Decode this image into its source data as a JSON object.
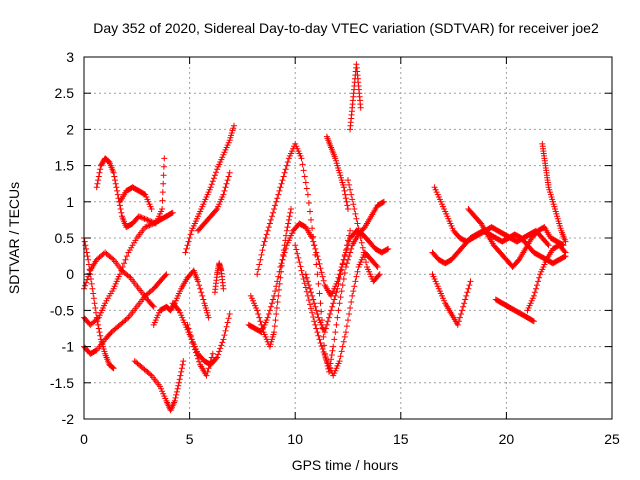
{
  "chart_data": {
    "type": "scatter",
    "title": "Day 352 of 2020, Sidereal Day-to-day VTEC variation (SDTVAR) for receiver joe2",
    "xlabel": "GPS time / hours",
    "ylabel": "SDTVAR / TECUs",
    "xlim": [
      0,
      25
    ],
    "ylim": [
      -2,
      3
    ],
    "xticks": [
      "0",
      "5",
      "10",
      "15",
      "20",
      "25"
    ],
    "yticks": [
      "-2",
      "-1.5",
      "-1",
      "-0.5",
      "0",
      "0.5",
      "1",
      "1.5",
      "2",
      "2.5",
      "3"
    ],
    "grid": true,
    "marker": "plus",
    "color": "#ff0000",
    "series": [
      {
        "name": "s1",
        "x": [
          0.0,
          0.3,
          0.6,
          1.0,
          1.4,
          1.8,
          2.2,
          2.6,
          3.0,
          3.3
        ],
        "y": [
          -0.2,
          0.05,
          0.2,
          0.3,
          0.2,
          0.05,
          -0.05,
          -0.2,
          -0.35,
          -0.45
        ]
      },
      {
        "name": "s2",
        "x": [
          0.0,
          0.3,
          0.7,
          1.0,
          1.4,
          1.7,
          2.1,
          2.5,
          2.9,
          3.3,
          3.6,
          3.9,
          4.2
        ],
        "y": [
          -0.6,
          -0.7,
          -0.6,
          -0.4,
          -0.2,
          0.0,
          0.3,
          0.5,
          0.65,
          0.7,
          0.75,
          0.8,
          0.85
        ]
      },
      {
        "name": "s3",
        "x": [
          0.0,
          0.3,
          0.6,
          1.0,
          1.3,
          1.7,
          2.1,
          2.5,
          2.9,
          3.3,
          3.6,
          3.9
        ],
        "y": [
          -1.0,
          -1.1,
          -1.05,
          -0.9,
          -0.8,
          -0.7,
          -0.6,
          -0.45,
          -0.3,
          -0.2,
          -0.1,
          0.0
        ]
      },
      {
        "name": "s4",
        "x": [
          0.0,
          0.2,
          0.4,
          0.6,
          0.8,
          1.0,
          1.2,
          1.4
        ],
        "y": [
          0.5,
          0.2,
          -0.2,
          -0.6,
          -0.9,
          -1.1,
          -1.25,
          -1.3
        ]
      },
      {
        "name": "s5",
        "x": [
          0.6,
          0.8,
          1.0,
          1.2,
          1.4,
          1.6,
          1.8,
          2.0,
          2.3,
          2.6,
          3.0,
          3.4,
          3.7,
          3.8
        ],
        "y": [
          1.2,
          1.5,
          1.6,
          1.55,
          1.4,
          1.1,
          0.8,
          0.65,
          0.7,
          0.8,
          0.75,
          0.7,
          0.9,
          1.6
        ]
      },
      {
        "name": "s6",
        "x": [
          1.7,
          2.0,
          2.3,
          2.6,
          2.9,
          3.2
        ],
        "y": [
          1.0,
          1.15,
          1.2,
          1.15,
          1.1,
          0.9
        ]
      },
      {
        "name": "s7",
        "x": [
          2.4,
          2.8,
          3.2,
          3.6,
          3.9,
          4.1,
          4.3,
          4.5,
          4.7
        ],
        "y": [
          -1.2,
          -1.3,
          -1.4,
          -1.55,
          -1.75,
          -1.88,
          -1.75,
          -1.5,
          -1.2
        ]
      },
      {
        "name": "s8",
        "x": [
          3.3,
          3.6,
          3.9,
          4.1,
          4.3,
          4.6,
          4.9,
          5.2,
          5.4,
          5.7,
          5.9
        ],
        "y": [
          -0.7,
          -0.5,
          -0.45,
          -0.5,
          -0.4,
          -0.2,
          -0.05,
          0.05,
          -0.1,
          -0.4,
          -0.6
        ]
      },
      {
        "name": "s9",
        "x": [
          4.2,
          4.5,
          4.8,
          5.1,
          5.4,
          5.7,
          6.0,
          6.3,
          6.6,
          6.9
        ],
        "y": [
          -0.4,
          -0.5,
          -0.7,
          -0.9,
          -1.1,
          -1.2,
          -1.25,
          -1.15,
          -0.9,
          -0.55
        ]
      },
      {
        "name": "s10",
        "x": [
          4.9,
          5.2,
          5.5,
          5.8,
          6.1
        ],
        "y": [
          -0.7,
          -1.0,
          -1.25,
          -1.4,
          -1.1
        ]
      },
      {
        "name": "s11",
        "x": [
          4.8,
          5.1,
          5.4,
          5.7,
          6.0,
          6.3,
          6.6,
          6.9,
          7.1
        ],
        "y": [
          0.3,
          0.6,
          0.8,
          1.0,
          1.2,
          1.45,
          1.65,
          1.85,
          2.05
        ]
      },
      {
        "name": "s12",
        "x": [
          5.4,
          5.7,
          6.0,
          6.3,
          6.6,
          6.9
        ],
        "y": [
          0.6,
          0.7,
          0.8,
          0.9,
          1.1,
          1.4
        ]
      },
      {
        "name": "s13",
        "x": [
          6.2,
          6.3,
          6.4,
          6.5,
          6.6
        ],
        "y": [
          -0.25,
          0.0,
          0.15,
          0.05,
          -0.2
        ]
      },
      {
        "name": "s14",
        "x": [
          7.8,
          8.1,
          8.4,
          8.7,
          9.0,
          9.3,
          9.6,
          9.9,
          10.2,
          10.5,
          10.8,
          11.1,
          11.4,
          11.7,
          12.0,
          12.3,
          12.6,
          12.9,
          13.2,
          13.5,
          13.8,
          14.1,
          14.4
        ],
        "y": [
          -0.7,
          -0.75,
          -0.8,
          -0.6,
          -0.3,
          0.1,
          0.4,
          0.6,
          0.7,
          0.65,
          0.5,
          0.2,
          -0.15,
          -0.3,
          -0.1,
          0.2,
          0.5,
          0.6,
          0.55,
          0.45,
          0.35,
          0.3,
          0.35
        ]
      },
      {
        "name": "s15",
        "x": [
          7.9,
          8.2,
          8.5,
          8.8,
          9.0,
          9.2,
          9.4,
          9.6,
          9.8
        ],
        "y": [
          -0.3,
          -0.5,
          -0.8,
          -1.0,
          -0.8,
          -0.3,
          0.2,
          0.6,
          0.9
        ]
      },
      {
        "name": "s16",
        "x": [
          8.2,
          8.5,
          8.8,
          9.1,
          9.4,
          9.7,
          10.0,
          10.3,
          10.6,
          10.9,
          11.2,
          11.4,
          11.6,
          11.8,
          12.1,
          12.4,
          12.7,
          13.0,
          13.3,
          13.6,
          13.9,
          14.2
        ],
        "y": [
          0.0,
          0.4,
          0.7,
          1.0,
          1.3,
          1.6,
          1.8,
          1.6,
          1.1,
          0.4,
          -0.4,
          -1.1,
          -1.35,
          -1.0,
          -0.4,
          0.1,
          0.4,
          0.55,
          0.65,
          0.8,
          0.95,
          1.0
        ]
      },
      {
        "name": "s17",
        "x": [
          10.0,
          10.3,
          10.6,
          10.9,
          11.2,
          11.5,
          11.8,
          12.1,
          12.4,
          12.7,
          13.0,
          13.3,
          13.6,
          13.9
        ],
        "y": [
          0.4,
          0.05,
          -0.3,
          -0.65,
          -0.95,
          -1.2,
          -1.4,
          -1.2,
          -0.8,
          -0.3,
          0.1,
          0.3,
          0.2,
          0.1
        ]
      },
      {
        "name": "s18",
        "x": [
          10.5,
          10.8,
          11.1,
          11.4,
          11.7,
          12.0,
          12.3,
          12.6
        ],
        "y": [
          0.0,
          -0.3,
          -0.6,
          -0.8,
          -0.5,
          -0.2,
          0.2,
          0.6
        ]
      },
      {
        "name": "s19",
        "x": [
          11.5,
          11.7,
          11.9,
          12.1,
          12.3,
          12.5
        ],
        "y": [
          1.9,
          1.75,
          1.6,
          1.4,
          1.2,
          0.9
        ]
      },
      {
        "name": "s20",
        "x": [
          12.6,
          12.7,
          12.8,
          12.9,
          13.0,
          13.1
        ],
        "y": [
          2.0,
          2.3,
          2.6,
          2.9,
          2.6,
          2.3
        ]
      },
      {
        "name": "s21",
        "x": [
          12.5,
          12.8,
          13.1,
          13.4,
          13.7,
          14.0
        ],
        "y": [
          1.3,
          0.9,
          0.5,
          0.1,
          -0.1,
          0.0
        ]
      },
      {
        "name": "s22",
        "x": [
          16.5,
          16.8,
          17.1,
          17.4,
          17.7,
          18.0,
          18.3,
          18.6,
          18.9,
          19.2,
          19.5,
          19.8,
          20.1,
          20.4,
          20.7,
          21.0,
          21.3,
          21.6,
          21.9,
          22.2,
          22.5,
          22.8
        ],
        "y": [
          0.3,
          0.2,
          0.15,
          0.2,
          0.3,
          0.4,
          0.5,
          0.55,
          0.6,
          0.55,
          0.5,
          0.45,
          0.5,
          0.55,
          0.5,
          0.4,
          0.3,
          0.25,
          0.2,
          0.15,
          0.2,
          0.25
        ]
      },
      {
        "name": "s23",
        "x": [
          16.6,
          16.9,
          17.2,
          17.5,
          17.8,
          18.1,
          18.4,
          18.7,
          19.0,
          19.3,
          19.6,
          19.9,
          20.2,
          20.5,
          20.8,
          21.1,
          21.4,
          21.7,
          22.0
        ],
        "y": [
          1.2,
          1.0,
          0.8,
          0.6,
          0.5,
          0.45,
          0.5,
          0.55,
          0.6,
          0.65,
          0.6,
          0.55,
          0.5,
          0.45,
          0.5,
          0.55,
          0.6,
          0.5,
          0.4
        ]
      },
      {
        "name": "s24",
        "x": [
          16.5,
          16.8,
          17.1,
          17.4,
          17.7,
          18.0,
          18.3
        ],
        "y": [
          0.0,
          -0.2,
          -0.4,
          -0.55,
          -0.7,
          -0.4,
          -0.1
        ]
      },
      {
        "name": "s25",
        "x": [
          18.2,
          18.5,
          18.8,
          19.1,
          19.4,
          19.7,
          20.0,
          20.3,
          20.6,
          20.9,
          21.2,
          21.5,
          21.8,
          22.1,
          22.4,
          22.7
        ],
        "y": [
          0.9,
          0.8,
          0.7,
          0.55,
          0.4,
          0.3,
          0.2,
          0.1,
          0.2,
          0.35,
          0.5,
          0.6,
          0.65,
          0.5,
          0.45,
          0.4
        ]
      },
      {
        "name": "s26",
        "x": [
          19.5,
          19.8,
          20.1,
          20.4,
          20.7,
          21.0,
          21.3
        ],
        "y": [
          -0.35,
          -0.4,
          -0.45,
          -0.5,
          -0.55,
          -0.6,
          -0.65
        ]
      },
      {
        "name": "s27",
        "x": [
          21.7,
          21.8,
          21.9,
          22.0,
          22.2,
          22.4,
          22.6,
          22.8
        ],
        "y": [
          1.8,
          1.6,
          1.4,
          1.2,
          1.0,
          0.8,
          0.6,
          0.45
        ]
      },
      {
        "name": "s28",
        "x": [
          21.0,
          21.3,
          21.6,
          21.9,
          22.2,
          22.5,
          22.8
        ],
        "y": [
          -0.5,
          -0.3,
          0.0,
          0.2,
          0.35,
          0.4,
          0.3
        ]
      }
    ]
  }
}
